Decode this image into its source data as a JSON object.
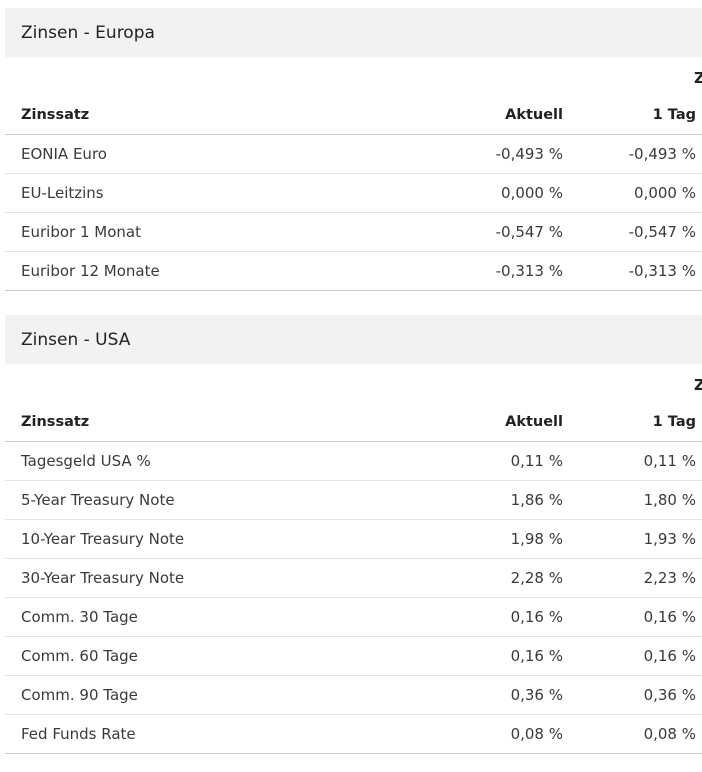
{
  "sections": [
    {
      "title": "Zinsen - Europa",
      "superheader": "Z",
      "columns": {
        "name": "Zinssatz",
        "current": "Aktuell",
        "day": "1 Tag"
      },
      "rows": [
        {
          "name": "EONIA Euro",
          "current": "-0,493 %",
          "day": "-0,493 %"
        },
        {
          "name": "EU-Leitzins",
          "current": "0,000 %",
          "day": "0,000 %"
        },
        {
          "name": "Euribor 1 Monat",
          "current": "-0,547 %",
          "day": "-0,547 %"
        },
        {
          "name": "Euribor 12 Monate",
          "current": "-0,313 %",
          "day": "-0,313 %"
        }
      ]
    },
    {
      "title": "Zinsen - USA",
      "superheader": "Z",
      "columns": {
        "name": "Zinssatz",
        "current": "Aktuell",
        "day": "1 Tag"
      },
      "rows": [
        {
          "name": "Tagesgeld USA %",
          "current": "0,11 %",
          "day": "0,11 %"
        },
        {
          "name": "5-Year Treasury Note",
          "current": "1,86 %",
          "day": "1,80 %"
        },
        {
          "name": "10-Year Treasury Note",
          "current": "1,98 %",
          "day": "1,93 %"
        },
        {
          "name": "30-Year Treasury Note",
          "current": "2,28 %",
          "day": "2,23 %"
        },
        {
          "name": "Comm. 30 Tage",
          "current": "0,16 %",
          "day": "0,16 %"
        },
        {
          "name": "Comm. 60 Tage",
          "current": "0,16 %",
          "day": "0,16 %"
        },
        {
          "name": "Comm. 90 Tage",
          "current": "0,36 %",
          "day": "0,36 %"
        },
        {
          "name": "Fed Funds Rate",
          "current": "0,08 %",
          "day": "0,08 %"
        }
      ]
    }
  ]
}
